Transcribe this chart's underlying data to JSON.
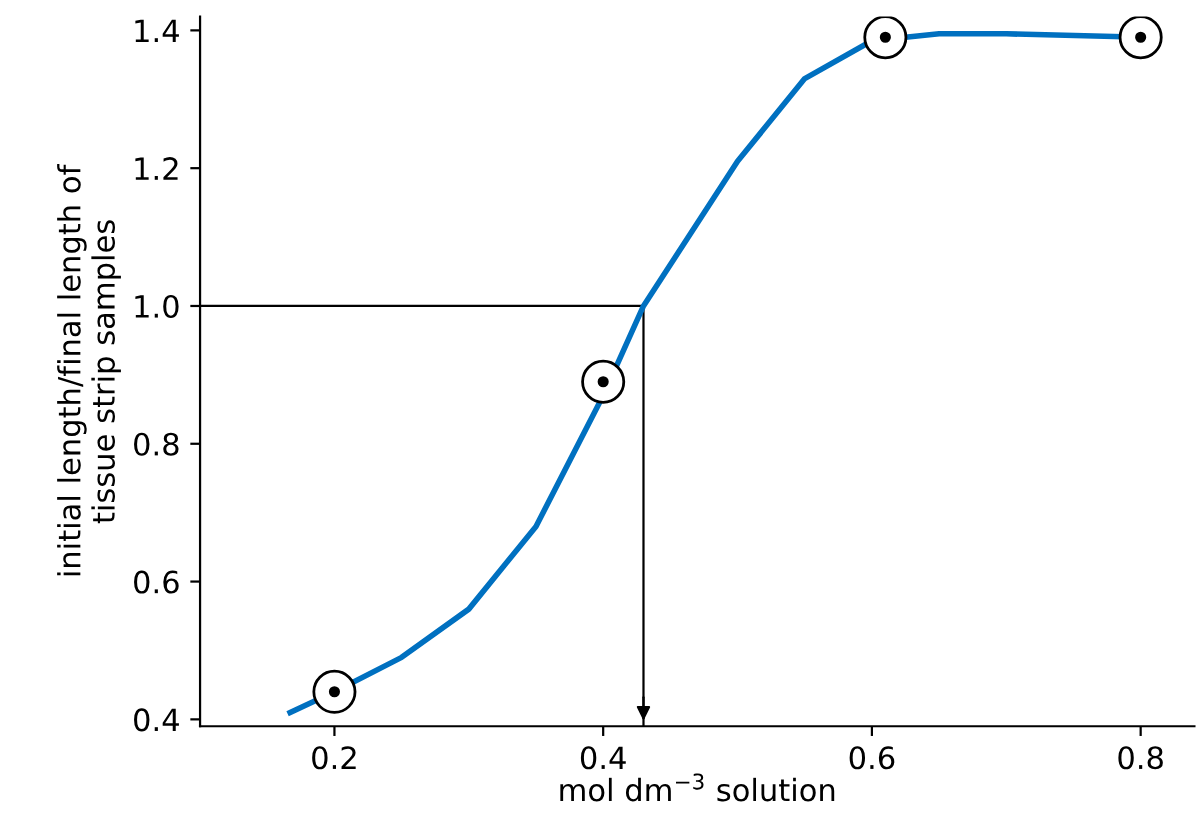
{
  "chart_data": {
    "type": "line",
    "xlabel": "mol dm$^{−3}$ solution",
    "ylabel": "initial length/final length of\ntissue strip samples",
    "xlim": [
      0.1,
      0.84
    ],
    "ylim": [
      0.39,
      1.42
    ],
    "xticks": [
      0.2,
      0.4,
      0.6,
      0.8
    ],
    "yticks": [
      0.4,
      0.6,
      0.8,
      {
        "value": 1,
        "label": "1.0"
      },
      1.2,
      1.4
    ],
    "grid": false,
    "series": [
      {
        "color": "#0070c0",
        "marker": "none",
        "x": [
          0.167,
          0.2,
          0.25,
          0.3,
          0.35,
          0.4,
          0.43,
          0.5,
          0.55,
          0.6,
          0.65,
          0.7,
          0.8
        ],
        "values": [
          0.41,
          0.44,
          0.49,
          0.56,
          0.68,
          0.87,
          1.0,
          1.21,
          1.33,
          1.385,
          1.395,
          1.395,
          1.39
        ]
      },
      {
        "type": "scatter",
        "color": "#000000",
        "marker": "circle",
        "x": [
          0.2,
          0.4,
          0.61,
          0.8
        ],
        "values": [
          0.44,
          0.89,
          1.39,
          1.39
        ]
      }
    ],
    "ref_lines": [
      {
        "axis": "y",
        "value": 1.0,
        "color": "#000000"
      },
      {
        "axis": "x",
        "value": 0.43,
        "color": "#000000"
      }
    ]
  }
}
